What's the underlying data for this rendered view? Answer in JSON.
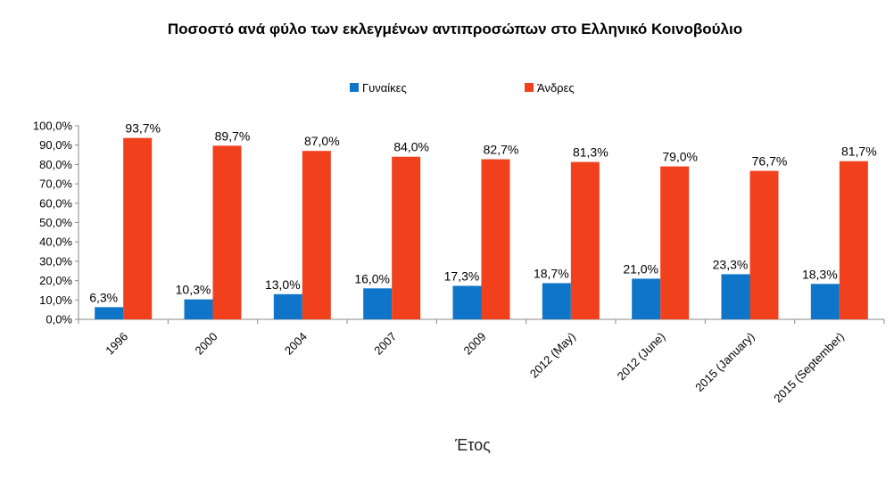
{
  "chart_data": {
    "type": "bar",
    "title": "Ποσοστό ανά φύλο των εκλεγμένων αντιπροσώπων στο Ελληνικό Κοινοβούλιο",
    "xlabel": "Έτος",
    "ylabel": "",
    "ylim": [
      0,
      100
    ],
    "y_ticks": [
      "0,0%",
      "10,0%",
      "20,0%",
      "30,0%",
      "40,0%",
      "50,0%",
      "60,0%",
      "70,0%",
      "80,0%",
      "90,0%",
      "100,0%"
    ],
    "grid": false,
    "legend_position": "top",
    "categories": [
      "1996",
      "2000",
      "2004",
      "2007",
      "2009",
      "2012 (May)",
      "2012 (June)",
      "2015 (January)",
      "2015 (September)"
    ],
    "series": [
      {
        "name": "Γυναίκες",
        "color": "#0f75c8",
        "values": [
          6.3,
          10.3,
          13.0,
          16.0,
          17.3,
          18.7,
          21.0,
          23.3,
          18.3
        ],
        "labels": [
          "6,3%",
          "10,3%",
          "13,0%",
          "16,0%",
          "17,3%",
          "18,7%",
          "21,0%",
          "23,3%",
          "18,3%"
        ]
      },
      {
        "name": "Άνδρες",
        "color": "#f0401c",
        "values": [
          93.7,
          89.7,
          87.0,
          84.0,
          82.7,
          81.3,
          79.0,
          76.7,
          81.7
        ],
        "labels": [
          "93,7%",
          "89,7%",
          "87,0%",
          "84,0%",
          "82,7%",
          "81,3%",
          "79,0%",
          "76,7%",
          "81,7%"
        ]
      }
    ]
  }
}
